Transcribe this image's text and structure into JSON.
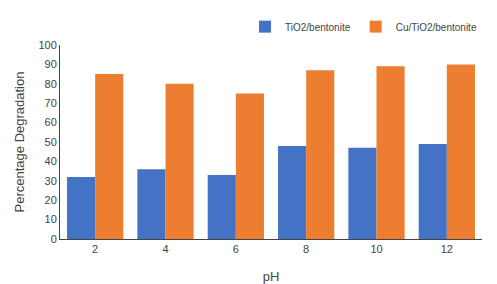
{
  "chart_data": {
    "type": "bar",
    "categories": [
      "2",
      "4",
      "6",
      "8",
      "10",
      "12"
    ],
    "series": [
      {
        "name": "TiO2/bentonite",
        "color": "#4472C4",
        "values": [
          32,
          36,
          33,
          48,
          47,
          49
        ]
      },
      {
        "name": "Cu/TiO2/bentonite",
        "color": "#ED7D31",
        "values": [
          85,
          80,
          75,
          87,
          89,
          90
        ]
      }
    ],
    "xlabel": "pH",
    "ylabel": "Percentage Degradation",
    "ylim": [
      0,
      100
    ],
    "yticks": [
      0,
      10,
      20,
      30,
      40,
      50,
      60,
      70,
      80,
      90,
      100
    ],
    "grid": false,
    "legend": "upper right"
  }
}
